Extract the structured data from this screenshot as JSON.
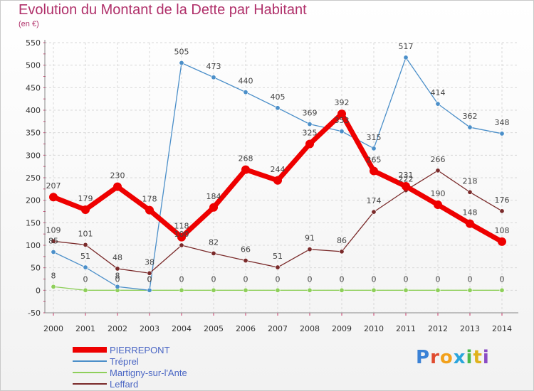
{
  "header": {
    "title": "Evolution du Montant de la Dette par Habitant",
    "subtitle": "(en €)"
  },
  "logo": {
    "letters": [
      "P",
      "r",
      "o",
      "x",
      "i",
      "t",
      "i"
    ],
    "colors": [
      "#3b82d6",
      "#e04b2f",
      "#f2a11c",
      "#2aa5dc",
      "#4bb84b",
      "#e0b21c",
      "#8a4bc4"
    ]
  },
  "chart_data": {
    "type": "line",
    "x": [
      2000,
      2001,
      2002,
      2003,
      2004,
      2005,
      2006,
      2007,
      2008,
      2009,
      2010,
      2011,
      2012,
      2013,
      2014
    ],
    "ylim": [
      -50,
      550
    ],
    "yticks": [
      -50,
      0,
      50,
      100,
      150,
      200,
      250,
      300,
      350,
      400,
      450,
      500,
      550
    ],
    "grid": true,
    "legend_position": "bottom-left",
    "series": [
      {
        "name": "PIERREPONT",
        "color": "#ee0000",
        "values": [
          207,
          179,
          230,
          178,
          118,
          184,
          268,
          244,
          325,
          392,
          265,
          231,
          190,
          148,
          108
        ]
      },
      {
        "name": "Tréprel",
        "color": "#4b8fc9",
        "values": [
          85,
          51,
          8,
          0,
          505,
          473,
          440,
          405,
          369,
          353,
          315,
          517,
          414,
          362,
          348
        ]
      },
      {
        "name": "Martigny-sur-l'Ante",
        "color": "#8ecf5a",
        "values": [
          8,
          0,
          0,
          0,
          0,
          0,
          0,
          0,
          0,
          0,
          0,
          0,
          0,
          0,
          0
        ]
      },
      {
        "name": "Leffard",
        "color": "#7a2a2a",
        "values": [
          109,
          101,
          48,
          38,
          100,
          82,
          66,
          51,
          91,
          86,
          174,
          222,
          266,
          218,
          176
        ]
      }
    ]
  }
}
